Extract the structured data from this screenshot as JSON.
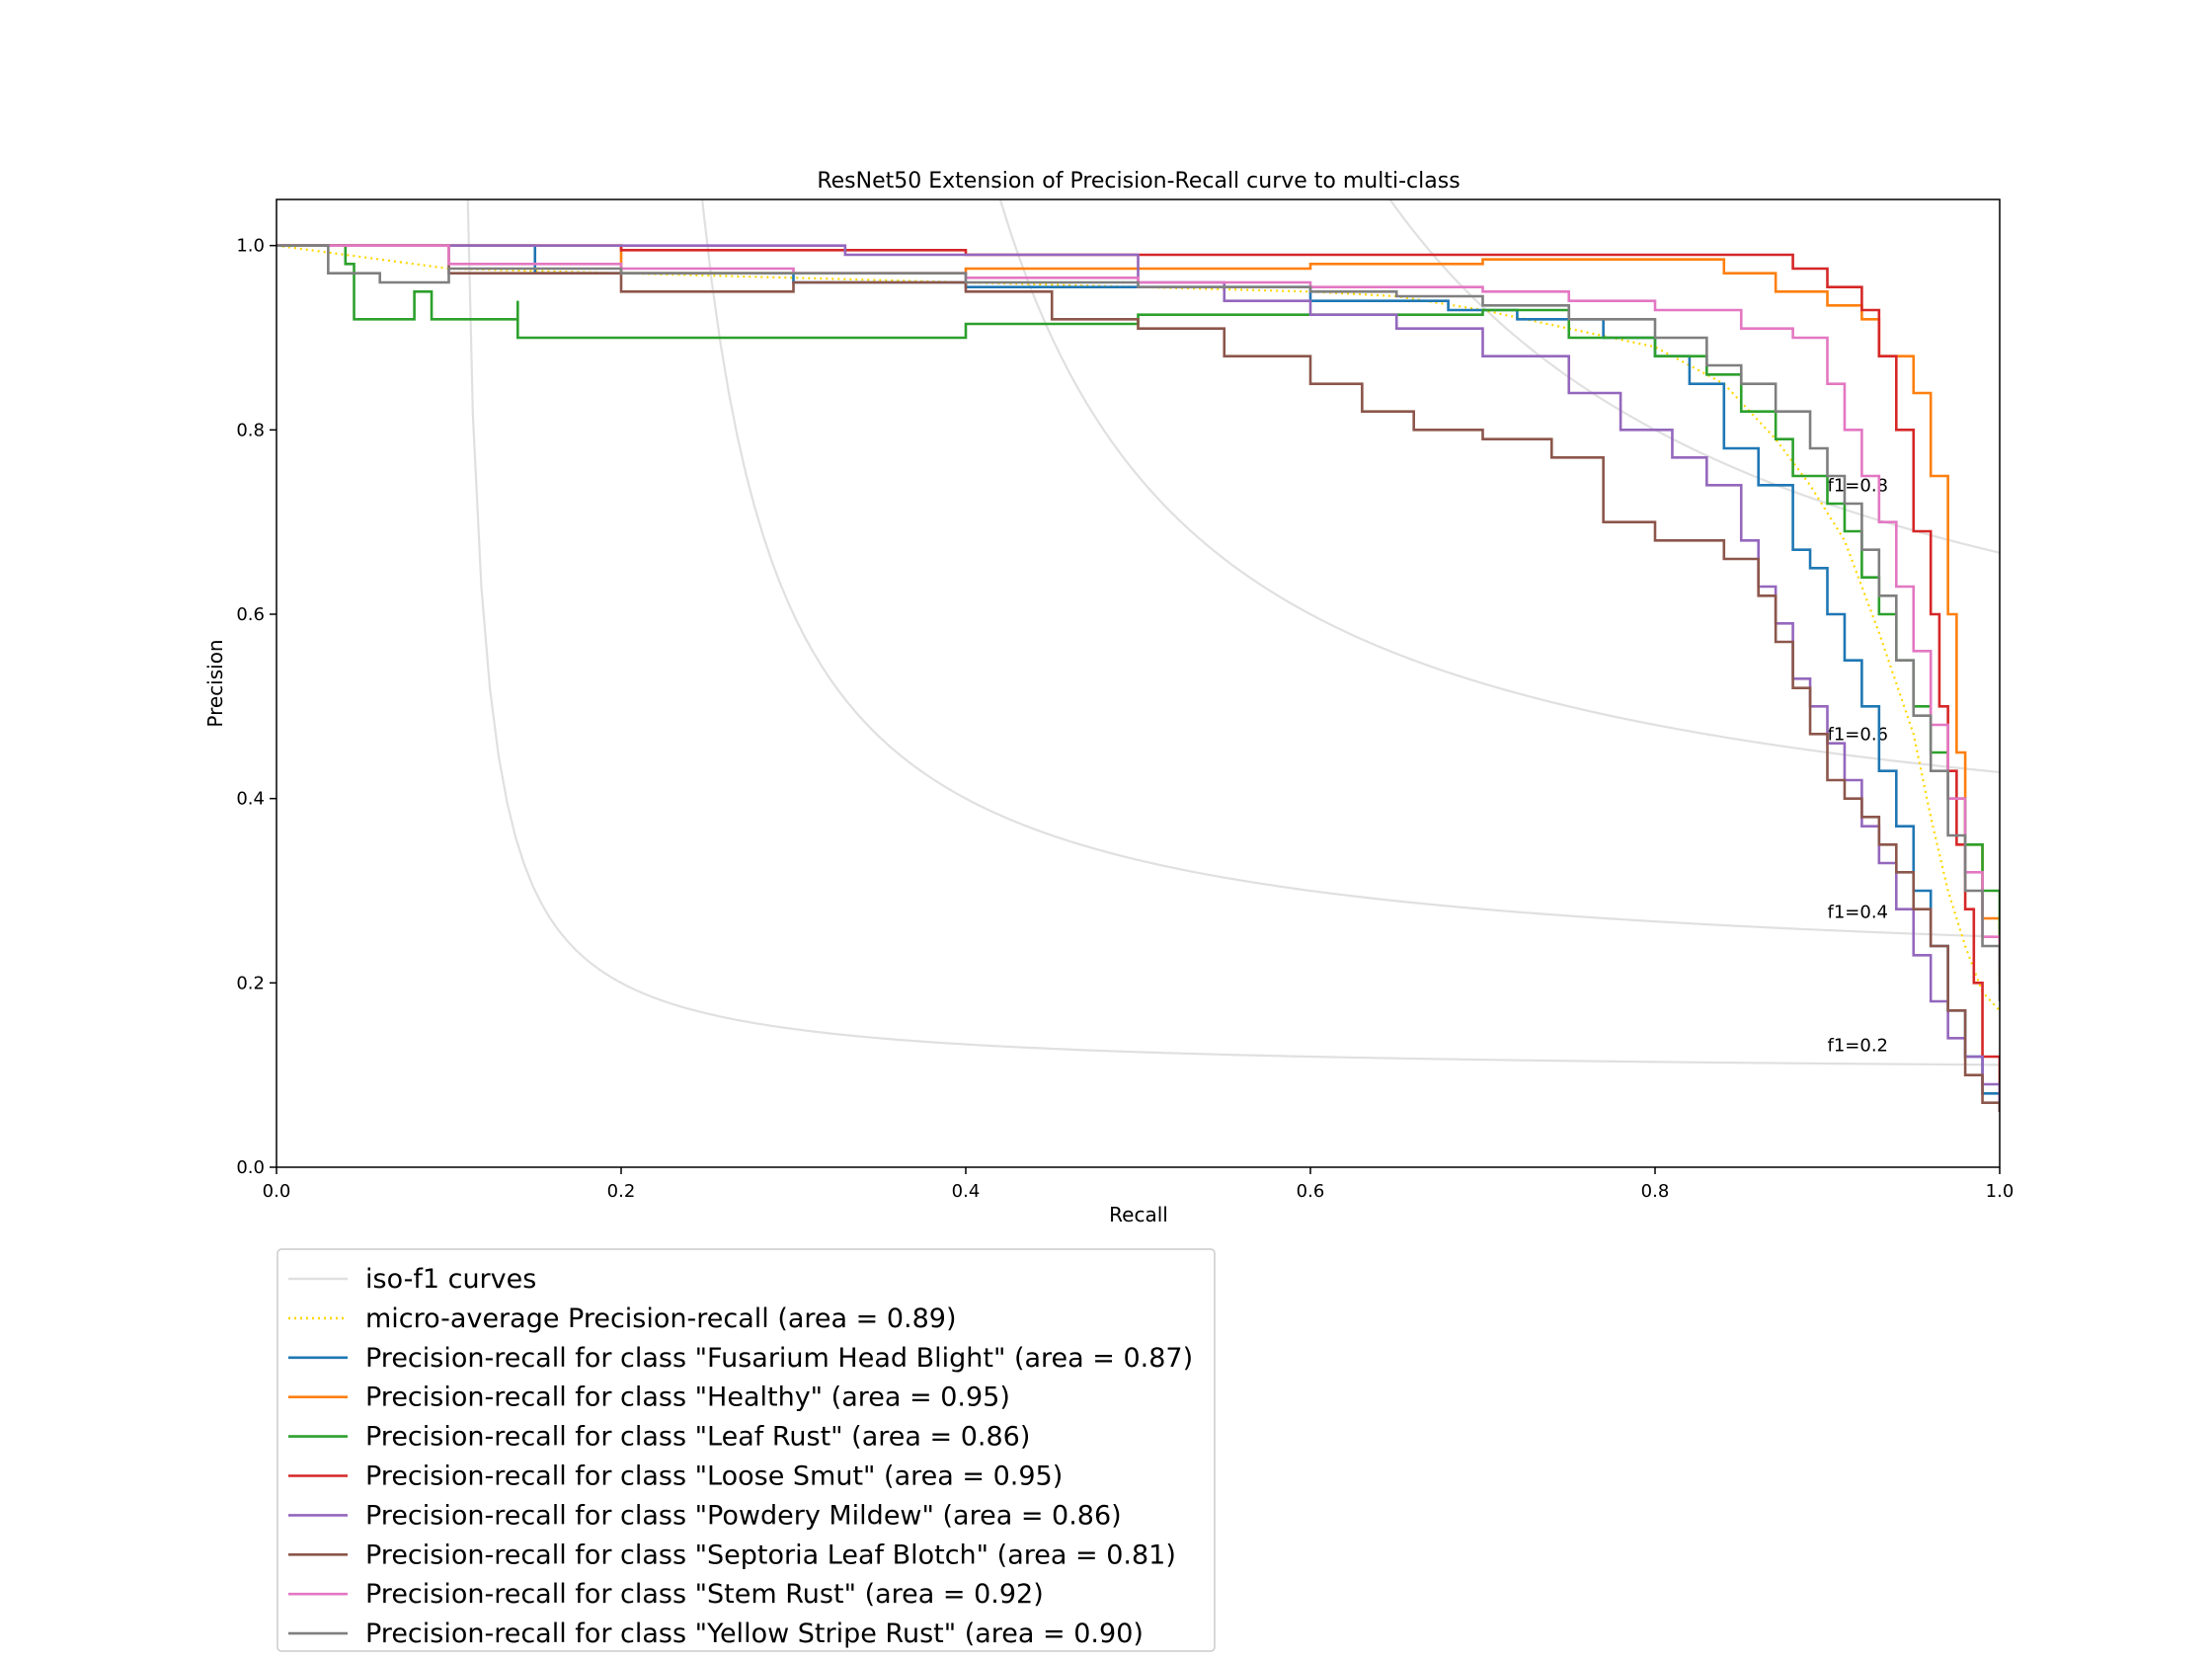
{
  "chart_data": {
    "type": "line",
    "title": "ResNet50 Extension of Precision-Recall curve to multi-class",
    "xlabel": "Recall",
    "ylabel": "Precision",
    "xlim": [
      0.0,
      1.0
    ],
    "ylim": [
      0.0,
      1.05
    ],
    "xticks": [
      "0.0",
      "0.2",
      "0.4",
      "0.6",
      "0.8",
      "1.0"
    ],
    "yticks": [
      "0.0",
      "0.2",
      "0.4",
      "0.6",
      "0.8",
      "1.0"
    ],
    "grid": false,
    "legend_placement": "below-left",
    "iso_f1": {
      "label": "iso-f1 curves",
      "color": "#e0e0e0",
      "levels": [
        0.2,
        0.4,
        0.6,
        0.8
      ],
      "labels": [
        "f1=0.2",
        "f1=0.4",
        "f1=0.6",
        "f1=0.8"
      ]
    },
    "series": [
      {
        "name": "micro-average Precision-recall (area = 0.89)",
        "color": "#ffd700",
        "style": "dotted",
        "points": [
          [
            0,
            1.0
          ],
          [
            0.1,
            0.975
          ],
          [
            0.2,
            0.97
          ],
          [
            0.3,
            0.965
          ],
          [
            0.4,
            0.96
          ],
          [
            0.5,
            0.955
          ],
          [
            0.6,
            0.95
          ],
          [
            0.65,
            0.945
          ],
          [
            0.7,
            0.93
          ],
          [
            0.75,
            0.91
          ],
          [
            0.8,
            0.89
          ],
          [
            0.84,
            0.85
          ],
          [
            0.87,
            0.79
          ],
          [
            0.89,
            0.74
          ],
          [
            0.91,
            0.68
          ],
          [
            0.93,
            0.58
          ],
          [
            0.95,
            0.47
          ],
          [
            0.96,
            0.38
          ],
          [
            0.97,
            0.3
          ],
          [
            0.98,
            0.24
          ],
          [
            0.99,
            0.19
          ],
          [
            1.0,
            0.17
          ]
        ]
      },
      {
        "name": "Precision-recall for class \"Fusarium Head Blight\" (area = 0.87)",
        "color": "#1f77b4",
        "style": "solid",
        "points": [
          [
            0,
            1.0
          ],
          [
            0.15,
            0.97
          ],
          [
            0.3,
            0.96
          ],
          [
            0.4,
            0.955
          ],
          [
            0.5,
            0.955
          ],
          [
            0.6,
            0.94
          ],
          [
            0.68,
            0.93
          ],
          [
            0.72,
            0.92
          ],
          [
            0.77,
            0.9
          ],
          [
            0.8,
            0.88
          ],
          [
            0.82,
            0.85
          ],
          [
            0.84,
            0.78
          ],
          [
            0.86,
            0.74
          ],
          [
            0.88,
            0.67
          ],
          [
            0.89,
            0.65
          ],
          [
            0.9,
            0.6
          ],
          [
            0.91,
            0.55
          ],
          [
            0.92,
            0.5
          ],
          [
            0.93,
            0.43
          ],
          [
            0.94,
            0.37
          ],
          [
            0.95,
            0.3
          ],
          [
            0.96,
            0.24
          ],
          [
            0.97,
            0.17
          ],
          [
            0.98,
            0.12
          ],
          [
            0.99,
            0.08
          ],
          [
            1.0,
            0.06
          ]
        ]
      },
      {
        "name": "Precision-recall for class \"Healthy\" (area = 0.95)",
        "color": "#ff7f0e",
        "style": "solid",
        "points": [
          [
            0,
            1.0
          ],
          [
            0.2,
            0.97
          ],
          [
            0.4,
            0.975
          ],
          [
            0.5,
            0.975
          ],
          [
            0.6,
            0.98
          ],
          [
            0.7,
            0.985
          ],
          [
            0.8,
            0.985
          ],
          [
            0.84,
            0.97
          ],
          [
            0.87,
            0.95
          ],
          [
            0.9,
            0.935
          ],
          [
            0.92,
            0.92
          ],
          [
            0.93,
            0.88
          ],
          [
            0.95,
            0.84
          ],
          [
            0.96,
            0.75
          ],
          [
            0.97,
            0.6
          ],
          [
            0.975,
            0.45
          ],
          [
            0.98,
            0.35
          ],
          [
            0.99,
            0.27
          ],
          [
            1.0,
            0.2
          ]
        ]
      },
      {
        "name": "Precision-recall for class \"Leaf Rust\" (area = 0.86)",
        "color": "#2ca02c",
        "style": "solid",
        "points": [
          [
            0,
            1.0
          ],
          [
            0.04,
            0.98
          ],
          [
            0.045,
            0.92
          ],
          [
            0.08,
            0.95
          ],
          [
            0.09,
            0.92
          ],
          [
            0.14,
            0.94
          ],
          [
            0.14,
            0.9
          ],
          [
            0.2,
            0.9
          ],
          [
            0.3,
            0.9
          ],
          [
            0.4,
            0.915
          ],
          [
            0.5,
            0.925
          ],
          [
            0.6,
            0.925
          ],
          [
            0.7,
            0.93
          ],
          [
            0.75,
            0.9
          ],
          [
            0.8,
            0.88
          ],
          [
            0.83,
            0.86
          ],
          [
            0.85,
            0.82
          ],
          [
            0.87,
            0.79
          ],
          [
            0.88,
            0.75
          ],
          [
            0.9,
            0.72
          ],
          [
            0.91,
            0.69
          ],
          [
            0.92,
            0.64
          ],
          [
            0.93,
            0.6
          ],
          [
            0.94,
            0.55
          ],
          [
            0.95,
            0.5
          ],
          [
            0.96,
            0.45
          ],
          [
            0.97,
            0.4
          ],
          [
            0.98,
            0.35
          ],
          [
            0.99,
            0.3
          ],
          [
            1.0,
            0.24
          ]
        ]
      },
      {
        "name": "Precision-recall for class \"Loose Smut\" (area = 0.95)",
        "color": "#d62728",
        "style": "solid",
        "points": [
          [
            0,
            1.0
          ],
          [
            0.2,
            0.995
          ],
          [
            0.4,
            0.99
          ],
          [
            0.6,
            0.99
          ],
          [
            0.8,
            0.99
          ],
          [
            0.86,
            0.99
          ],
          [
            0.88,
            0.975
          ],
          [
            0.9,
            0.955
          ],
          [
            0.92,
            0.93
          ],
          [
            0.93,
            0.88
          ],
          [
            0.94,
            0.8
          ],
          [
            0.95,
            0.69
          ],
          [
            0.96,
            0.6
          ],
          [
            0.965,
            0.5
          ],
          [
            0.97,
            0.43
          ],
          [
            0.975,
            0.35
          ],
          [
            0.98,
            0.28
          ],
          [
            0.985,
            0.2
          ],
          [
            0.99,
            0.12
          ],
          [
            1.0,
            0.06
          ]
        ]
      },
      {
        "name": "Precision-recall for class \"Powdery Mildew\" (area = 0.86)",
        "color": "#9467bd",
        "style": "solid",
        "points": [
          [
            0,
            1.0
          ],
          [
            0.33,
            1.0
          ],
          [
            0.33,
            0.99
          ],
          [
            0.47,
            0.99
          ],
          [
            0.5,
            0.96
          ],
          [
            0.55,
            0.94
          ],
          [
            0.6,
            0.925
          ],
          [
            0.65,
            0.91
          ],
          [
            0.7,
            0.88
          ],
          [
            0.75,
            0.84
          ],
          [
            0.78,
            0.8
          ],
          [
            0.81,
            0.77
          ],
          [
            0.83,
            0.74
          ],
          [
            0.85,
            0.68
          ],
          [
            0.86,
            0.63
          ],
          [
            0.87,
            0.59
          ],
          [
            0.88,
            0.53
          ],
          [
            0.89,
            0.5
          ],
          [
            0.9,
            0.46
          ],
          [
            0.91,
            0.42
          ],
          [
            0.92,
            0.37
          ],
          [
            0.93,
            0.33
          ],
          [
            0.94,
            0.28
          ],
          [
            0.95,
            0.23
          ],
          [
            0.96,
            0.18
          ],
          [
            0.97,
            0.14
          ],
          [
            0.98,
            0.12
          ],
          [
            0.99,
            0.09
          ],
          [
            1.0,
            0.06
          ]
        ]
      },
      {
        "name": "Precision-recall for class \"Septoria Leaf Blotch\" (area = 0.81)",
        "color": "#8c564b",
        "style": "solid",
        "points": [
          [
            0,
            1.0
          ],
          [
            0.1,
            0.97
          ],
          [
            0.2,
            0.95
          ],
          [
            0.3,
            0.96
          ],
          [
            0.35,
            0.96
          ],
          [
            0.4,
            0.95
          ],
          [
            0.45,
            0.92
          ],
          [
            0.5,
            0.91
          ],
          [
            0.55,
            0.88
          ],
          [
            0.6,
            0.85
          ],
          [
            0.63,
            0.82
          ],
          [
            0.66,
            0.8
          ],
          [
            0.7,
            0.79
          ],
          [
            0.74,
            0.77
          ],
          [
            0.77,
            0.7
          ],
          [
            0.8,
            0.68
          ],
          [
            0.84,
            0.66
          ],
          [
            0.86,
            0.62
          ],
          [
            0.87,
            0.57
          ],
          [
            0.88,
            0.52
          ],
          [
            0.89,
            0.47
          ],
          [
            0.9,
            0.42
          ],
          [
            0.91,
            0.4
          ],
          [
            0.92,
            0.38
          ],
          [
            0.93,
            0.35
          ],
          [
            0.94,
            0.32
          ],
          [
            0.95,
            0.28
          ],
          [
            0.96,
            0.24
          ],
          [
            0.97,
            0.17
          ],
          [
            0.98,
            0.1
          ],
          [
            0.99,
            0.07
          ],
          [
            1.0,
            0.06
          ]
        ]
      },
      {
        "name": "Precision-recall for class \"Stem Rust\" (area = 0.92)",
        "color": "#e377c2",
        "style": "solid",
        "points": [
          [
            0,
            1.0
          ],
          [
            0.1,
            0.98
          ],
          [
            0.2,
            0.975
          ],
          [
            0.3,
            0.97
          ],
          [
            0.4,
            0.965
          ],
          [
            0.5,
            0.96
          ],
          [
            0.6,
            0.955
          ],
          [
            0.7,
            0.95
          ],
          [
            0.75,
            0.94
          ],
          [
            0.8,
            0.93
          ],
          [
            0.85,
            0.91
          ],
          [
            0.88,
            0.9
          ],
          [
            0.9,
            0.85
          ],
          [
            0.91,
            0.8
          ],
          [
            0.92,
            0.75
          ],
          [
            0.93,
            0.7
          ],
          [
            0.94,
            0.63
          ],
          [
            0.95,
            0.56
          ],
          [
            0.96,
            0.48
          ],
          [
            0.97,
            0.4
          ],
          [
            0.98,
            0.32
          ],
          [
            0.99,
            0.25
          ],
          [
            1.0,
            0.21
          ]
        ]
      },
      {
        "name": "Precision-recall for class \"Yellow Stripe Rust\" (area = 0.90)",
        "color": "#7f7f7f",
        "style": "solid",
        "points": [
          [
            0,
            1.0
          ],
          [
            0.03,
            0.97
          ],
          [
            0.06,
            0.96
          ],
          [
            0.1,
            0.975
          ],
          [
            0.2,
            0.97
          ],
          [
            0.3,
            0.97
          ],
          [
            0.4,
            0.96
          ],
          [
            0.5,
            0.955
          ],
          [
            0.6,
            0.95
          ],
          [
            0.65,
            0.945
          ],
          [
            0.7,
            0.935
          ],
          [
            0.75,
            0.92
          ],
          [
            0.8,
            0.9
          ],
          [
            0.83,
            0.87
          ],
          [
            0.85,
            0.85
          ],
          [
            0.87,
            0.82
          ],
          [
            0.89,
            0.78
          ],
          [
            0.9,
            0.75
          ],
          [
            0.91,
            0.72
          ],
          [
            0.92,
            0.67
          ],
          [
            0.93,
            0.62
          ],
          [
            0.94,
            0.55
          ],
          [
            0.95,
            0.49
          ],
          [
            0.96,
            0.43
          ],
          [
            0.97,
            0.36
          ],
          [
            0.98,
            0.3
          ],
          [
            0.99,
            0.24
          ],
          [
            1.0,
            0.18
          ]
        ]
      }
    ]
  }
}
